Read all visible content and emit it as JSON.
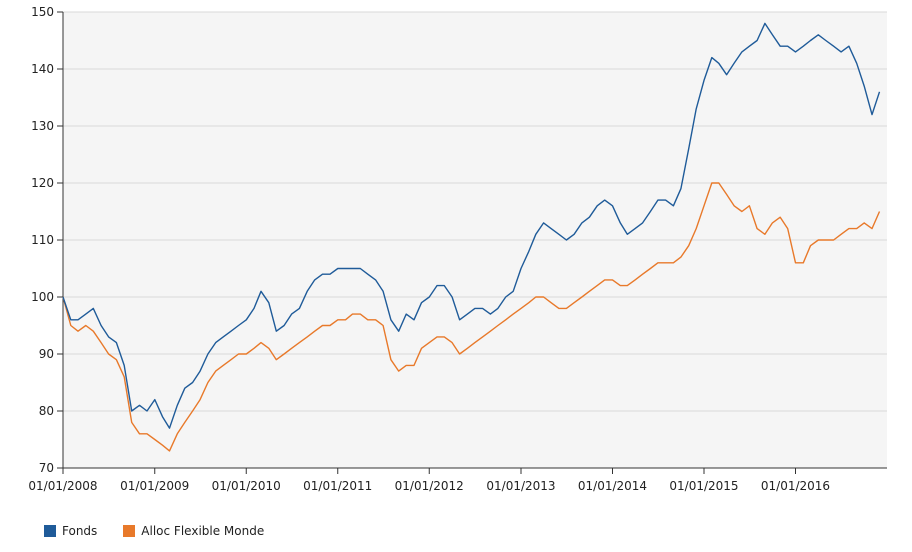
{
  "chart_data": {
    "type": "line",
    "title": "",
    "xlabel": "",
    "ylabel": "",
    "ylim": [
      70,
      150
    ],
    "yticks": [
      70,
      80,
      90,
      100,
      110,
      120,
      130,
      140,
      150
    ],
    "xlim": [
      "2008-01-01",
      "2016-12-31"
    ],
    "xticks": [
      "01/01/2008",
      "01/01/2009",
      "01/01/2010",
      "01/01/2011",
      "01/01/2012",
      "01/01/2013",
      "01/01/2014",
      "01/01/2015",
      "01/01/2016"
    ],
    "grid": true,
    "legend_position": "bottom-left",
    "series": [
      {
        "name": "Fonds",
        "color": "#1f5b99",
        "x": [
          "2008-01-01",
          "2008-02-01",
          "2008-03-01",
          "2008-04-01",
          "2008-05-01",
          "2008-06-01",
          "2008-07-01",
          "2008-08-01",
          "2008-09-01",
          "2008-10-01",
          "2008-11-01",
          "2008-12-01",
          "2009-01-01",
          "2009-02-01",
          "2009-03-01",
          "2009-04-01",
          "2009-05-01",
          "2009-06-01",
          "2009-07-01",
          "2009-08-01",
          "2009-09-01",
          "2009-10-01",
          "2009-11-01",
          "2009-12-01",
          "2010-01-01",
          "2010-02-01",
          "2010-03-01",
          "2010-04-01",
          "2010-05-01",
          "2010-06-01",
          "2010-07-01",
          "2010-08-01",
          "2010-09-01",
          "2010-10-01",
          "2010-11-01",
          "2010-12-01",
          "2011-01-01",
          "2011-02-01",
          "2011-03-01",
          "2011-04-01",
          "2011-05-01",
          "2011-06-01",
          "2011-07-01",
          "2011-08-01",
          "2011-09-01",
          "2011-10-01",
          "2011-11-01",
          "2011-12-01",
          "2012-01-01",
          "2012-02-01",
          "2012-03-01",
          "2012-04-01",
          "2012-05-01",
          "2012-06-01",
          "2012-07-01",
          "2012-08-01",
          "2012-09-01",
          "2012-10-01",
          "2012-11-01",
          "2012-12-01",
          "2013-01-01",
          "2013-02-01",
          "2013-03-01",
          "2013-04-01",
          "2013-05-01",
          "2013-06-01",
          "2013-07-01",
          "2013-08-01",
          "2013-09-01",
          "2013-10-01",
          "2013-11-01",
          "2013-12-01",
          "2014-01-01",
          "2014-02-01",
          "2014-03-01",
          "2014-04-01",
          "2014-05-01",
          "2014-06-01",
          "2014-07-01",
          "2014-08-01",
          "2014-09-01",
          "2014-10-01",
          "2014-11-01",
          "2014-12-01",
          "2015-01-01",
          "2015-02-01",
          "2015-03-01",
          "2015-04-01",
          "2015-05-01",
          "2015-06-01",
          "2015-07-01",
          "2015-08-01",
          "2015-09-01",
          "2015-10-01",
          "2015-11-01",
          "2015-12-01",
          "2016-01-01",
          "2016-02-01",
          "2016-03-01",
          "2016-04-01",
          "2016-05-01",
          "2016-06-01",
          "2016-07-01",
          "2016-08-01",
          "2016-09-01",
          "2016-10-01",
          "2016-11-01",
          "2016-12-01"
        ],
        "values": [
          100,
          96,
          96,
          97,
          98,
          95,
          93,
          92,
          88,
          80,
          81,
          80,
          82,
          79,
          77,
          81,
          84,
          85,
          87,
          90,
          92,
          93,
          94,
          95,
          96,
          98,
          101,
          99,
          94,
          95,
          97,
          98,
          101,
          103,
          104,
          104,
          105,
          105,
          105,
          105,
          104,
          103,
          101,
          96,
          94,
          97,
          96,
          99,
          100,
          102,
          102,
          100,
          96,
          97,
          98,
          98,
          97,
          98,
          100,
          101,
          105,
          108,
          111,
          113,
          112,
          111,
          110,
          111,
          113,
          114,
          116,
          117,
          116,
          113,
          111,
          112,
          113,
          115,
          117,
          117,
          116,
          119,
          126,
          133,
          138,
          142,
          141,
          139,
          141,
          143,
          144,
          145,
          148,
          146,
          144,
          144,
          143,
          144,
          145,
          146,
          145,
          144,
          143,
          144,
          141,
          137,
          132,
          136
        ]
      },
      {
        "name": "Alloc Flexible Monde",
        "color": "#e8792a",
        "x": [
          "2008-01-01",
          "2008-02-01",
          "2008-03-01",
          "2008-04-01",
          "2008-05-01",
          "2008-06-01",
          "2008-07-01",
          "2008-08-01",
          "2008-09-01",
          "2008-10-01",
          "2008-11-01",
          "2008-12-01",
          "2009-01-01",
          "2009-02-01",
          "2009-03-01",
          "2009-04-01",
          "2009-05-01",
          "2009-06-01",
          "2009-07-01",
          "2009-08-01",
          "2009-09-01",
          "2009-10-01",
          "2009-11-01",
          "2009-12-01",
          "2010-01-01",
          "2010-02-01",
          "2010-03-01",
          "2010-04-01",
          "2010-05-01",
          "2010-06-01",
          "2010-07-01",
          "2010-08-01",
          "2010-09-01",
          "2010-10-01",
          "2010-11-01",
          "2010-12-01",
          "2011-01-01",
          "2011-02-01",
          "2011-03-01",
          "2011-04-01",
          "2011-05-01",
          "2011-06-01",
          "2011-07-01",
          "2011-08-01",
          "2011-09-01",
          "2011-10-01",
          "2011-11-01",
          "2011-12-01",
          "2012-01-01",
          "2012-02-01",
          "2012-03-01",
          "2012-04-01",
          "2012-05-01",
          "2012-06-01",
          "2012-07-01",
          "2012-08-01",
          "2012-09-01",
          "2012-10-01",
          "2012-11-01",
          "2012-12-01",
          "2013-01-01",
          "2013-02-01",
          "2013-03-01",
          "2013-04-01",
          "2013-05-01",
          "2013-06-01",
          "2013-07-01",
          "2013-08-01",
          "2013-09-01",
          "2013-10-01",
          "2013-11-01",
          "2013-12-01",
          "2014-01-01",
          "2014-02-01",
          "2014-03-01",
          "2014-04-01",
          "2014-05-01",
          "2014-06-01",
          "2014-07-01",
          "2014-08-01",
          "2014-09-01",
          "2014-10-01",
          "2014-11-01",
          "2014-12-01",
          "2015-01-01",
          "2015-02-01",
          "2015-03-01",
          "2015-04-01",
          "2015-05-01",
          "2015-06-01",
          "2015-07-01",
          "2015-08-01",
          "2015-09-01",
          "2015-10-01",
          "2015-11-01",
          "2015-12-01",
          "2016-01-01",
          "2016-02-01",
          "2016-03-01",
          "2016-04-01",
          "2016-05-01",
          "2016-06-01",
          "2016-07-01",
          "2016-08-01",
          "2016-09-01",
          "2016-10-01",
          "2016-11-01",
          "2016-12-01"
        ],
        "values": [
          100,
          95,
          94,
          95,
          94,
          92,
          90,
          89,
          86,
          78,
          76,
          76,
          75,
          74,
          73,
          76,
          78,
          80,
          82,
          85,
          87,
          88,
          89,
          90,
          90,
          91,
          92,
          91,
          89,
          90,
          91,
          92,
          93,
          94,
          95,
          95,
          96,
          96,
          97,
          97,
          96,
          96,
          95,
          89,
          87,
          88,
          88,
          91,
          92,
          93,
          93,
          92,
          90,
          91,
          92,
          93,
          94,
          95,
          96,
          97,
          98,
          99,
          100,
          100,
          99,
          98,
          98,
          99,
          100,
          101,
          102,
          103,
          103,
          102,
          102,
          103,
          104,
          105,
          106,
          106,
          106,
          107,
          109,
          112,
          116,
          120,
          120,
          118,
          116,
          115,
          116,
          112,
          111,
          113,
          114,
          112,
          106,
          106,
          109,
          110,
          110,
          110,
          111,
          112,
          112,
          113,
          112,
          115
        ]
      }
    ]
  },
  "legend": {
    "items": [
      {
        "label": "Fonds",
        "color": "#1f5b99"
      },
      {
        "label": "Alloc Flexible Monde",
        "color": "#e8792a"
      }
    ]
  }
}
